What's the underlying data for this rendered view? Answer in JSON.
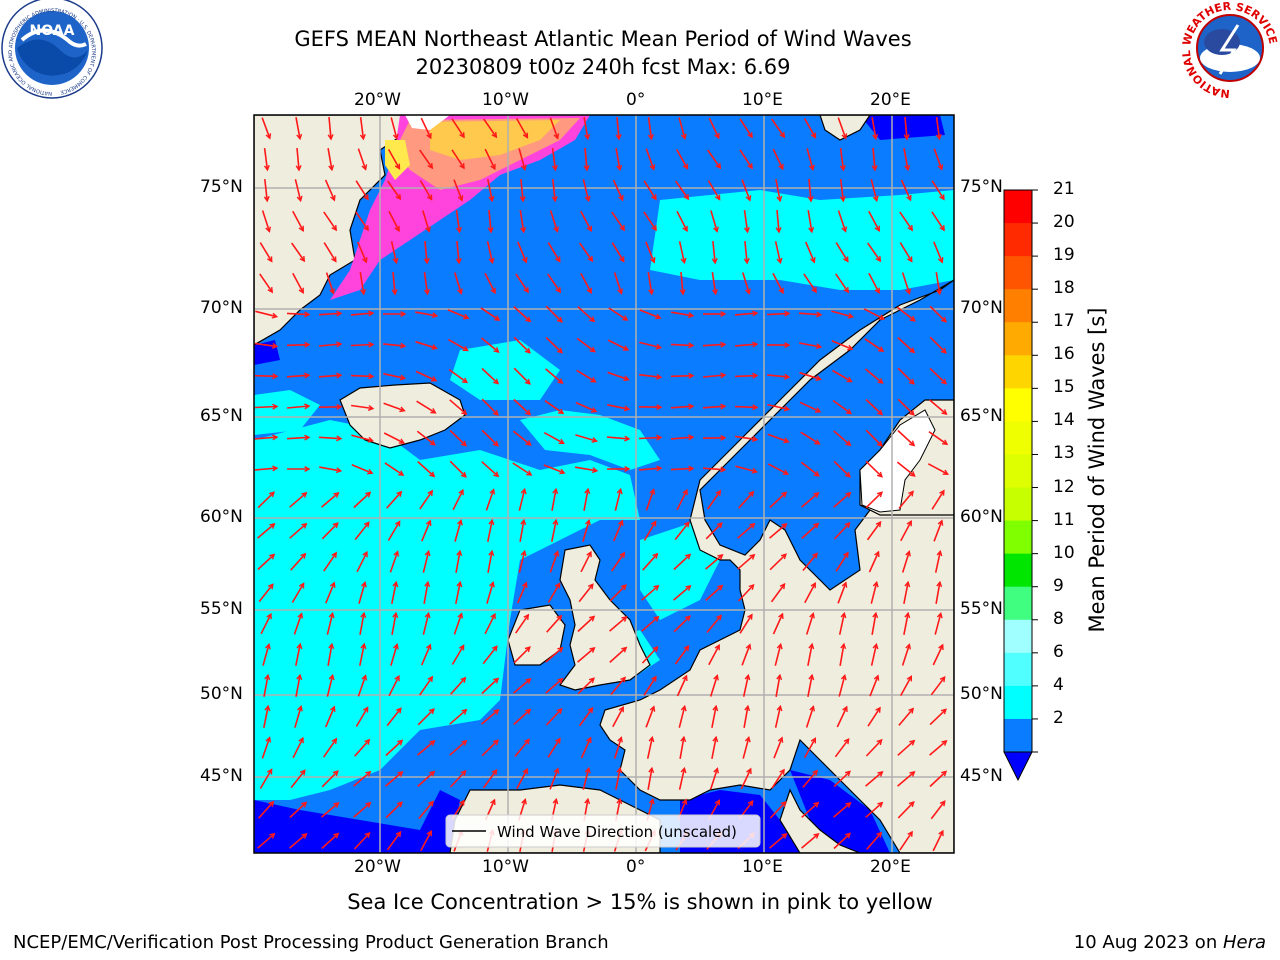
{
  "header": {
    "title_line1": "GEFS MEAN Northeast Atlantic Mean Period of Wind Waves",
    "title_line2": "20230809 t00z 240h fcst   Max: 6.69"
  },
  "logos": {
    "noaa_text": "NOAA",
    "noaa_ring_text": "NATIONAL OCEANIC AND ATMOSPHERIC ADMINISTRATION · U.S. DEPARTMENT OF COMMERCE",
    "nws_ring_text": "NATIONAL WEATHER SERVICE"
  },
  "map": {
    "lon_labels_top": [
      "20°W",
      "10°W",
      "0°",
      "10°E",
      "20°E"
    ],
    "lon_labels_bottom": [
      "20°W",
      "10°W",
      "0°",
      "10°E",
      "20°E"
    ],
    "lat_labels_left": [
      "75°N",
      "70°N",
      "65°N",
      "60°N",
      "55°N",
      "50°N",
      "45°N"
    ],
    "lat_labels_right": [
      "75°N",
      "70°N",
      "65°N",
      "60°N",
      "55°N",
      "50°N",
      "45°N"
    ],
    "legend_label": "Wind Wave Direction (unscaled)",
    "colors": {
      "land": "#efedde",
      "ocean_2_4": "#0a7cff",
      "ocean_4_6": "#00ffff",
      "ocean_6_8": "#3cfdfd",
      "ocean_lt2": "#0000ff",
      "arrow": "#ff1a1a",
      "grid": "#b0b0b0",
      "ice_pink": "#ff44dd",
      "ice_yellow": "#ffe94d"
    }
  },
  "colorbar": {
    "label": "Mean Period of Wind Waves [s]",
    "ticks": [
      "21",
      "20",
      "19",
      "18",
      "17",
      "16",
      "15",
      "14",
      "13",
      "12",
      "11",
      "10",
      "9",
      "8",
      "6",
      "4",
      "2"
    ],
    "colors": [
      "#ff0000",
      "#ff2a00",
      "#ff5500",
      "#ff8000",
      "#ffaa00",
      "#ffd500",
      "#ffff00",
      "#f0ff00",
      "#ddff00",
      "#c8ff00",
      "#80ff00",
      "#00e600",
      "#40ff80",
      "#a0ffff",
      "#50ffff",
      "#00ffff",
      "#0a7cff"
    ],
    "under_color": "#0000ff"
  },
  "notes": {
    "sea_ice": "Sea Ice Concentration > 15% is shown in pink to yellow"
  },
  "footer": {
    "left": "NCEP/EMC/Verification Post Processing Product Generation Branch",
    "right_prefix": "10 Aug 2023 on ",
    "right_machine": "Hera"
  }
}
